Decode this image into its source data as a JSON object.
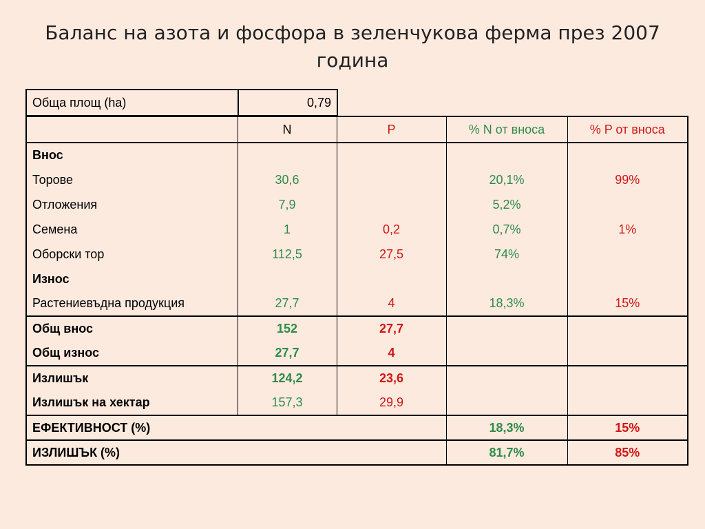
{
  "title": "Баланс на азота и фосфора в зеленчукова ферма през 2007 година",
  "area": {
    "label": "Обща площ (ha)",
    "value": "0,79"
  },
  "headers": {
    "n": "N",
    "p": "P",
    "pct_n": "% N от вноса",
    "pct_p": "% P от вноса"
  },
  "sections": {
    "input": "Внос",
    "output": "Износ"
  },
  "rows": {
    "torove": {
      "label": "Торове",
      "n": "30,6",
      "p": "",
      "pct_n": "20,1%",
      "pct_p": "99%"
    },
    "otlojenia": {
      "label": "Отложения",
      "n": "7,9",
      "p": "",
      "pct_n": "5,2%",
      "pct_p": ""
    },
    "semena": {
      "label": "Семена",
      "n": "1",
      "p": "0,2",
      "pct_n": "0,7%",
      "pct_p": "1%"
    },
    "oborski": {
      "label": "Оборски тор",
      "n": "112,5",
      "p": "27,5",
      "pct_n": "74%",
      "pct_p": ""
    },
    "rastenievadna": {
      "label": "Растениевъдна продукция",
      "n": "27,7",
      "p": "4",
      "pct_n": "18,3%",
      "pct_p": "15%"
    },
    "total_in": {
      "label": "Общ внос",
      "n": "152",
      "p": "27,7"
    },
    "total_out": {
      "label": "Общ износ",
      "n": "27,7",
      "p": "4"
    },
    "surplus": {
      "label": "Излишък",
      "n": "124,2",
      "p": "23,6"
    },
    "surplus_ha": {
      "label": "Излишък на хектар",
      "n": "157,3",
      "p": "29,9"
    },
    "efficiency": {
      "label": "ЕФЕКТИВНОСТ (%)",
      "pct_n": "18,3%",
      "pct_p": "15%"
    },
    "surplus_pct": {
      "label": "ИЗЛИШЪК (%)",
      "pct_n": "81,7%",
      "pct_p": "85%"
    }
  },
  "colors": {
    "background": "#fdeadf",
    "n_green": "#2e8b4a",
    "p_red": "#d01515"
  }
}
